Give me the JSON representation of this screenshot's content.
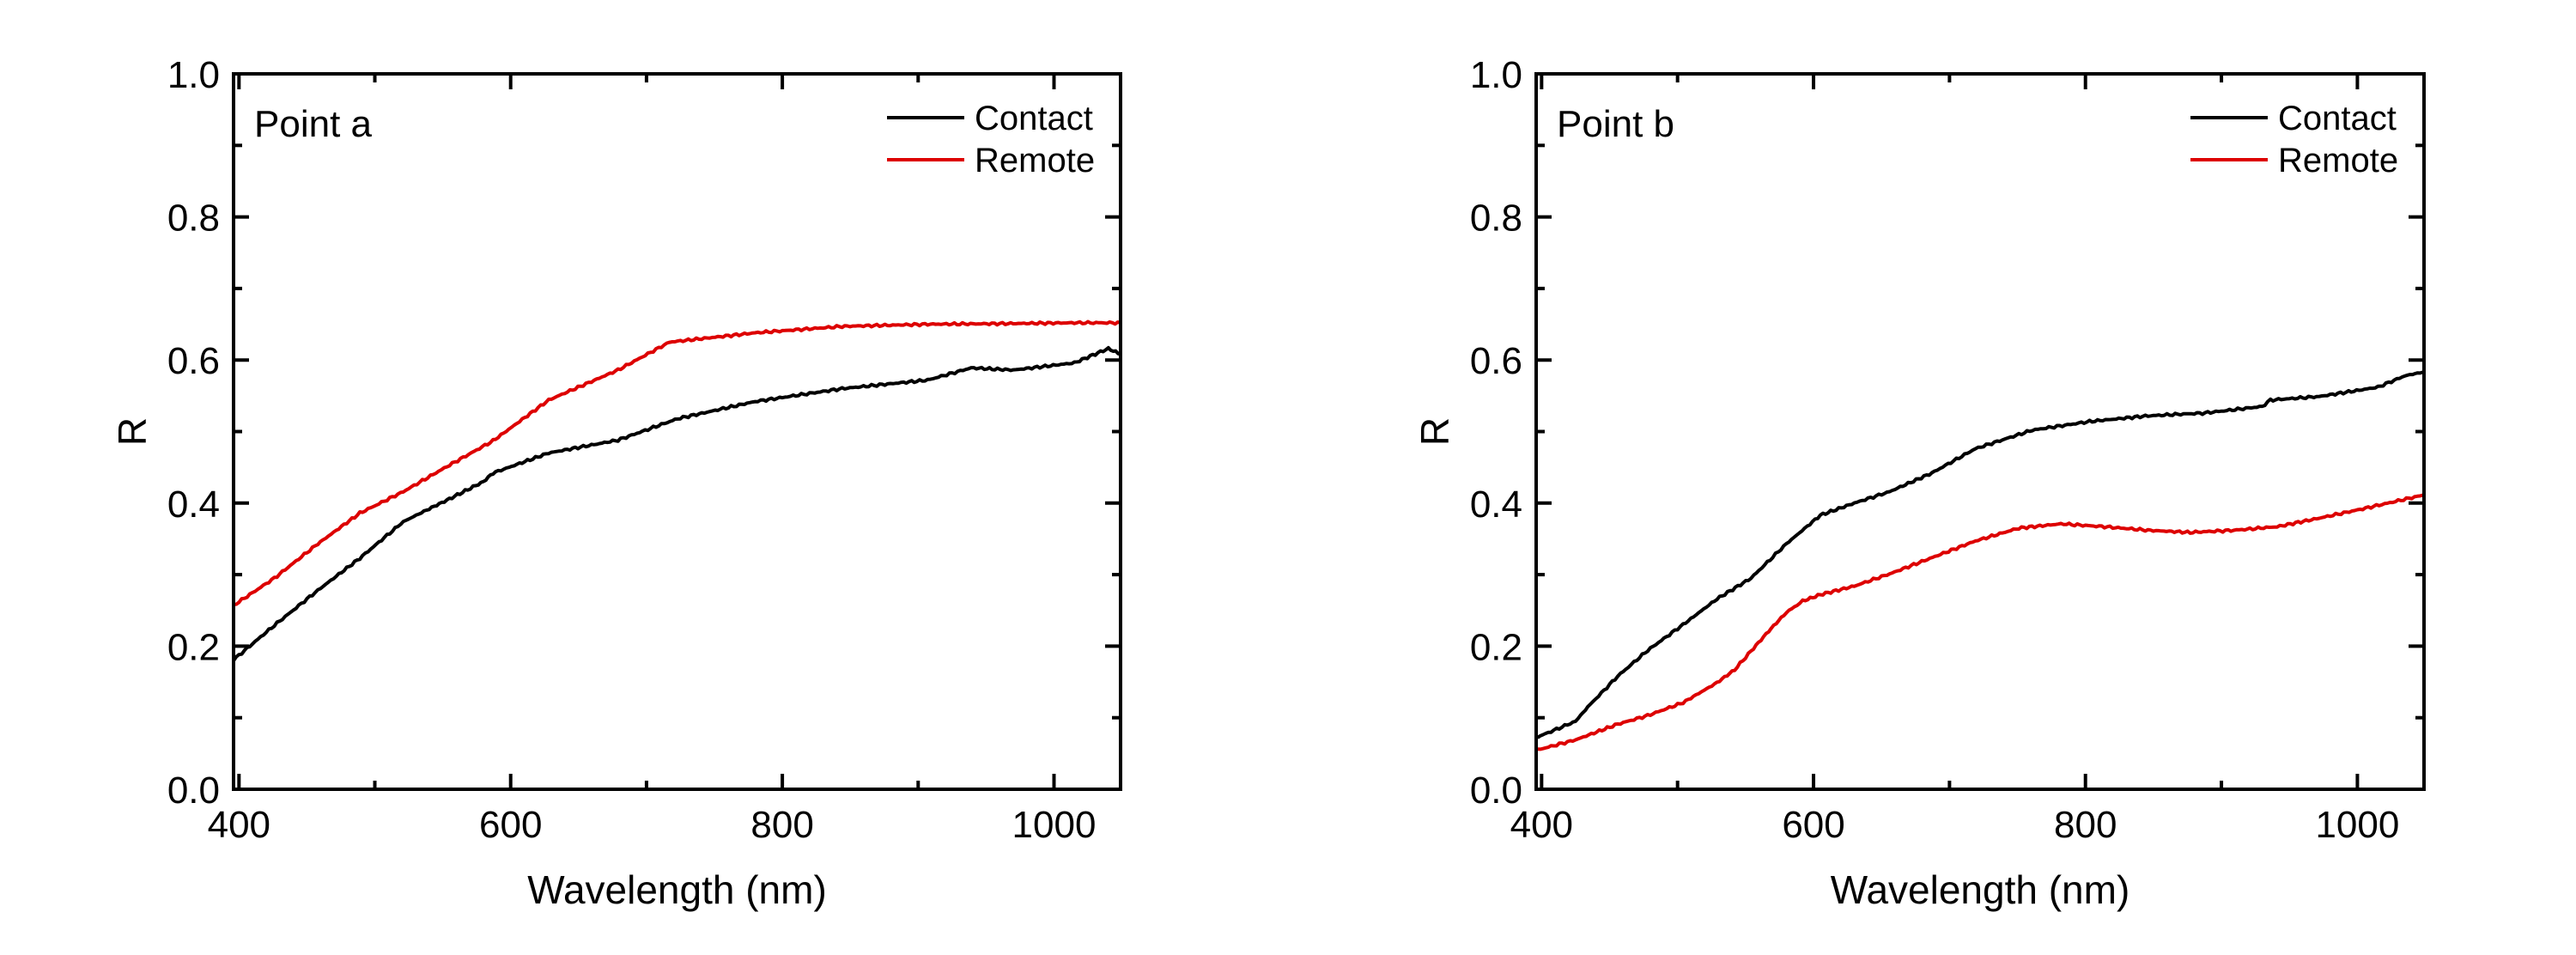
{
  "chart_data": [
    {
      "type": "line",
      "panel_label": "Point a",
      "xlabel": "Wavelength (nm)",
      "ylabel": "R",
      "xlim": [
        396,
        1049
      ],
      "ylim": [
        0.0,
        1.0
      ],
      "x_ticks": [
        400,
        600,
        800,
        1000
      ],
      "x_minor_ticks": [
        500,
        700,
        900
      ],
      "y_ticks": [
        0.0,
        0.2,
        0.4,
        0.6,
        0.8,
        1.0
      ],
      "y_tick_labels": [
        "0.0",
        "0.2",
        "0.4",
        "0.6",
        "0.8",
        "1.0"
      ],
      "y_minor_ticks": [
        0.1,
        0.3,
        0.5,
        0.7,
        0.9
      ],
      "grid": false,
      "legend_position": "upper right",
      "series": [
        {
          "name": "Contact",
          "color": "#000000",
          "x": [
            396,
            426,
            458,
            489,
            521,
            540,
            553,
            580,
            587,
            628,
            679,
            723,
            780,
            844,
            907,
            939,
            970,
            1015,
            1040,
            1049
          ],
          "y": [
            0.181,
            0.229,
            0.278,
            0.323,
            0.374,
            0.392,
            0.404,
            0.43,
            0.442,
            0.47,
            0.488,
            0.518,
            0.542,
            0.56,
            0.572,
            0.589,
            0.586,
            0.596,
            0.616,
            0.608
          ]
        },
        {
          "name": "Remote",
          "color": "#dd0000",
          "x": [
            396,
            426,
            458,
            489,
            521,
            553,
            587,
            628,
            679,
            717,
            780,
            844,
            907,
            970,
            1015,
            1049
          ],
          "y": [
            0.257,
            0.295,
            0.343,
            0.386,
            0.416,
            0.451,
            0.487,
            0.544,
            0.586,
            0.625,
            0.638,
            0.647,
            0.65,
            0.651,
            0.652,
            0.652
          ]
        }
      ]
    },
    {
      "type": "line",
      "panel_label": "Point b",
      "xlabel": "Wavelength (nm)",
      "ylabel": "R",
      "xlim": [
        396,
        1049
      ],
      "ylim": [
        0.0,
        1.0
      ],
      "x_ticks": [
        400,
        600,
        800,
        1000
      ],
      "x_minor_ticks": [
        500,
        700,
        900
      ],
      "y_ticks": [
        0.0,
        0.2,
        0.4,
        0.6,
        0.8,
        1.0
      ],
      "y_tick_labels": [
        "0.0",
        "0.2",
        "0.4",
        "0.6",
        "0.8",
        "1.0"
      ],
      "y_minor_ticks": [
        0.1,
        0.3,
        0.5,
        0.7,
        0.9
      ],
      "grid": false,
      "legend_position": "upper right",
      "series": [
        {
          "name": "Contact",
          "color": "#000000",
          "x": [
            397,
            425,
            434,
            456,
            478,
            504,
            529,
            554,
            580,
            605,
            630,
            656,
            687,
            719,
            761,
            803,
            846,
            888,
            930,
            936,
            972,
            1015,
            1035,
            1048
          ],
          "y": [
            0.073,
            0.095,
            0.115,
            0.158,
            0.194,
            0.23,
            0.266,
            0.295,
            0.343,
            0.383,
            0.4,
            0.416,
            0.442,
            0.476,
            0.502,
            0.514,
            0.522,
            0.526,
            0.535,
            0.544,
            0.549,
            0.562,
            0.578,
            0.583
          ]
        },
        {
          "name": "Remote",
          "color": "#dd0000",
          "x": [
            397,
            425,
            456,
            478,
            504,
            529,
            542,
            554,
            567,
            580,
            592,
            605,
            630,
            656,
            719,
            751,
            782,
            814,
            846,
            877,
            909,
            941,
            972,
            1004,
            1048
          ],
          "y": [
            0.055,
            0.069,
            0.091,
            0.103,
            0.121,
            0.149,
            0.167,
            0.193,
            0.221,
            0.247,
            0.263,
            0.272,
            0.284,
            0.301,
            0.347,
            0.365,
            0.371,
            0.367,
            0.362,
            0.359,
            0.362,
            0.367,
            0.379,
            0.392,
            0.411
          ]
        }
      ]
    }
  ]
}
